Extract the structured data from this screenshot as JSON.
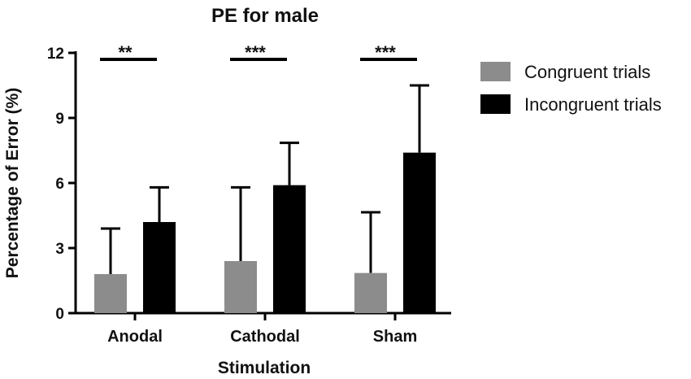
{
  "chart_data": {
    "type": "bar",
    "title": "PE for male",
    "xlabel": "Stimulation",
    "ylabel": "Percentage of Error (%)",
    "ylim": [
      0,
      12
    ],
    "yticks": [
      0,
      3,
      6,
      9,
      12
    ],
    "categories": [
      "Anodal",
      "Cathodal",
      "Sham"
    ],
    "series": [
      {
        "name": "Congruent trials",
        "color": "#8c8c8c",
        "values": [
          1.8,
          2.4,
          1.85
        ],
        "error": [
          2.1,
          3.4,
          2.8
        ]
      },
      {
        "name": "Incongruent trials",
        "color": "#000000",
        "values": [
          4.2,
          5.9,
          7.4
        ],
        "error": [
          1.6,
          1.95,
          3.1
        ]
      }
    ],
    "significance": [
      "**",
      "***",
      "***"
    ],
    "legend_position": "right"
  }
}
